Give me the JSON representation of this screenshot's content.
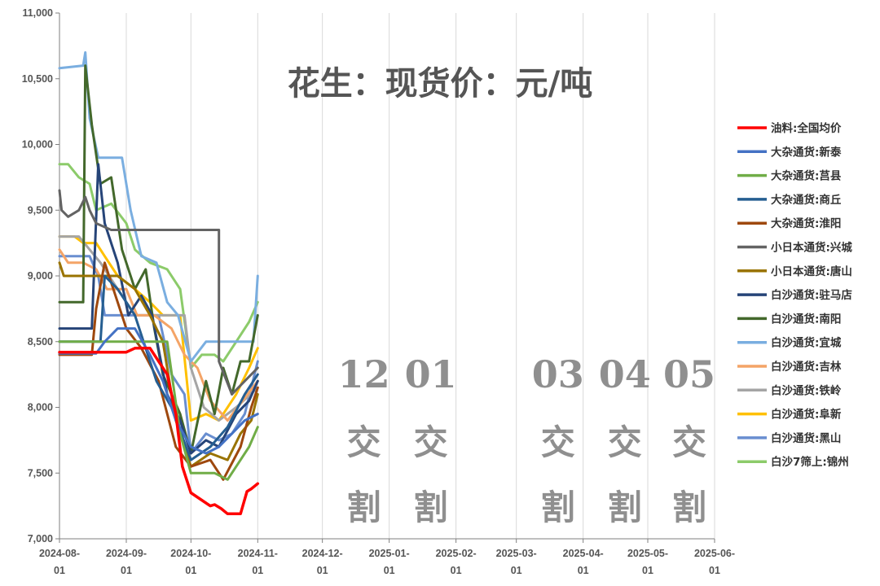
{
  "chart_data": {
    "type": "line",
    "title": "花生：现货价：元/吨",
    "xlabel": "",
    "ylabel": "",
    "x_range": [
      "2024-08-01",
      "2025-06-01"
    ],
    "ylim": [
      7000,
      11000
    ],
    "yticks": [
      "7,000",
      "7,500",
      "8,000",
      "8,500",
      "9,000",
      "9,500",
      "10,000",
      "10,500",
      "11,000"
    ],
    "xticks": [
      {
        "date": "2024-08-01",
        "line1": "2024-08-",
        "line2": "01"
      },
      {
        "date": "2024-09-01",
        "line1": "2024-09-",
        "line2": "01"
      },
      {
        "date": "2024-10-01",
        "line1": "2024-10-",
        "line2": "01"
      },
      {
        "date": "2024-11-01",
        "line1": "2024-11-",
        "line2": "01"
      },
      {
        "date": "2024-12-01",
        "line1": "2024-12-",
        "line2": "01"
      },
      {
        "date": "2025-01-01",
        "line1": "2025-01-",
        "line2": "01"
      },
      {
        "date": "2025-02-01",
        "line1": "2025-02-",
        "line2": "01"
      },
      {
        "date": "2025-03-01",
        "line1": "2025-03-",
        "line2": "01"
      },
      {
        "date": "2025-04-01",
        "line1": "2025-04-",
        "line2": "01"
      },
      {
        "date": "2025-05-01",
        "line1": "2025-05-",
        "line2": "01"
      },
      {
        "date": "2025-06-01",
        "line1": "2025-06-",
        "line2": "01"
      }
    ],
    "grid": "vertical",
    "legend_position": "right",
    "annotations": [
      {
        "date": "2024-12-15",
        "month": "12",
        "line2": "交",
        "line3": "割"
      },
      {
        "date": "2025-01-15",
        "month": "01",
        "line2": "交",
        "line3": "割"
      },
      {
        "date": "2025-03-15",
        "month": "03",
        "line2": "交",
        "line3": "割"
      },
      {
        "date": "2025-04-15",
        "month": "04",
        "line2": "交",
        "line3": "割"
      },
      {
        "date": "2025-05-15",
        "month": "05",
        "line2": "交",
        "line3": "割"
      }
    ],
    "series": [
      {
        "name": "油料:全国均价",
        "color": "#ff0000",
        "points": [
          [
            "2024-08-01",
            8420
          ],
          [
            "2024-08-15",
            8420
          ],
          [
            "2024-09-01",
            8420
          ],
          [
            "2024-09-05",
            8450
          ],
          [
            "2024-09-12",
            8450
          ],
          [
            "2024-09-20",
            8250
          ],
          [
            "2024-09-24",
            7950
          ],
          [
            "2024-09-27",
            7550
          ],
          [
            "2024-10-01",
            7350
          ],
          [
            "2024-10-10",
            7250
          ],
          [
            "2024-10-12",
            7260
          ],
          [
            "2024-10-15",
            7230
          ],
          [
            "2024-10-18",
            7190
          ],
          [
            "2024-10-24",
            7190
          ],
          [
            "2024-10-27",
            7360
          ],
          [
            "2024-10-29",
            7380
          ],
          [
            "2024-11-01",
            7420
          ]
        ]
      },
      {
        "name": "大杂通货:新泰",
        "color": "#4472c4",
        "points": [
          [
            "2024-08-01",
            8410
          ],
          [
            "2024-08-18",
            8410
          ],
          [
            "2024-08-22",
            8500
          ],
          [
            "2024-08-28",
            8600
          ],
          [
            "2024-09-05",
            8600
          ],
          [
            "2024-09-12",
            8400
          ],
          [
            "2024-09-18",
            8200
          ],
          [
            "2024-09-24",
            7900
          ],
          [
            "2024-10-01",
            7700
          ],
          [
            "2024-10-08",
            7650
          ],
          [
            "2024-10-14",
            7700
          ],
          [
            "2024-10-20",
            7800
          ],
          [
            "2024-10-26",
            7900
          ],
          [
            "2024-11-01",
            7950
          ]
        ]
      },
      {
        "name": "大杂通货:莒县",
        "color": "#70ad47",
        "points": [
          [
            "2024-08-01",
            8500
          ],
          [
            "2024-08-25",
            8500
          ],
          [
            "2024-09-05",
            8500
          ],
          [
            "2024-09-20",
            8500
          ],
          [
            "2024-09-26",
            7800
          ],
          [
            "2024-10-01",
            7500
          ],
          [
            "2024-10-12",
            7500
          ],
          [
            "2024-10-18",
            7450
          ],
          [
            "2024-10-24",
            7600
          ],
          [
            "2024-10-28",
            7700
          ],
          [
            "2024-11-01",
            7850
          ]
        ]
      },
      {
        "name": "大杂通货:商丘",
        "color": "#255e91",
        "points": [
          [
            "2024-08-01",
            8500
          ],
          [
            "2024-08-20",
            8500
          ],
          [
            "2024-08-22",
            9000
          ],
          [
            "2024-08-28",
            8900
          ],
          [
            "2024-09-05",
            8700
          ],
          [
            "2024-09-10",
            8450
          ],
          [
            "2024-09-15",
            8200
          ],
          [
            "2024-09-22",
            8000
          ],
          [
            "2024-10-01",
            7600
          ],
          [
            "2024-10-10",
            7700
          ],
          [
            "2024-10-18",
            7850
          ],
          [
            "2024-10-26",
            8100
          ],
          [
            "2024-11-01",
            8250
          ]
        ]
      },
      {
        "name": "大杂通货:淮阳",
        "color": "#9e480e",
        "points": [
          [
            "2024-08-01",
            8400
          ],
          [
            "2024-08-16",
            8400
          ],
          [
            "2024-08-18",
            8750
          ],
          [
            "2024-08-22",
            9100
          ],
          [
            "2024-08-26",
            8900
          ],
          [
            "2024-09-01",
            8600
          ],
          [
            "2024-09-08",
            8450
          ],
          [
            "2024-09-16",
            8200
          ],
          [
            "2024-09-24",
            7700
          ],
          [
            "2024-10-01",
            7550
          ],
          [
            "2024-10-10",
            7600
          ],
          [
            "2024-10-16",
            7450
          ],
          [
            "2024-10-24",
            7700
          ],
          [
            "2024-10-29",
            8000
          ],
          [
            "2024-11-01",
            8150
          ]
        ]
      },
      {
        "name": "小日本通货:兴城",
        "color": "#636363",
        "points": [
          [
            "2024-08-01",
            9650
          ],
          [
            "2024-08-02",
            9500
          ],
          [
            "2024-08-05",
            9450
          ],
          [
            "2024-08-10",
            9500
          ],
          [
            "2024-08-13",
            9600
          ],
          [
            "2024-08-15",
            9500
          ],
          [
            "2024-08-18",
            9400
          ],
          [
            "2024-08-25",
            9350
          ],
          [
            "2024-09-05",
            9350
          ],
          [
            "2024-10-01",
            9350
          ],
          [
            "2024-10-14",
            9350
          ],
          [
            "2024-10-14",
            8350
          ],
          [
            "2024-10-20",
            8100
          ],
          [
            "2024-10-26",
            8200
          ],
          [
            "2024-11-01",
            8300
          ]
        ]
      },
      {
        "name": "小日本通货:唐山",
        "color": "#997300",
        "points": [
          [
            "2024-08-01",
            9100
          ],
          [
            "2024-08-03",
            9000
          ],
          [
            "2024-08-10",
            9000
          ],
          [
            "2024-08-20",
            9000
          ],
          [
            "2024-08-28",
            9000
          ],
          [
            "2024-09-05",
            8900
          ],
          [
            "2024-09-12",
            8700
          ],
          [
            "2024-09-18",
            8500
          ],
          [
            "2024-09-24",
            7900
          ],
          [
            "2024-10-01",
            7550
          ],
          [
            "2024-10-10",
            7650
          ],
          [
            "2024-10-18",
            7600
          ],
          [
            "2024-10-24",
            7800
          ],
          [
            "2024-10-29",
            7900
          ],
          [
            "2024-11-01",
            8100
          ]
        ]
      },
      {
        "name": "白沙通货:驻马店",
        "color": "#264478",
        "points": [
          [
            "2024-08-01",
            8600
          ],
          [
            "2024-08-16",
            8600
          ],
          [
            "2024-08-19",
            9850
          ],
          [
            "2024-08-22",
            9400
          ],
          [
            "2024-08-28",
            9100
          ],
          [
            "2024-09-02",
            8700
          ],
          [
            "2024-09-08",
            8850
          ],
          [
            "2024-09-13",
            8700
          ],
          [
            "2024-09-20",
            8100
          ],
          [
            "2024-09-26",
            7900
          ],
          [
            "2024-10-01",
            7650
          ],
          [
            "2024-10-08",
            7750
          ],
          [
            "2024-10-14",
            7700
          ],
          [
            "2024-10-22",
            7950
          ],
          [
            "2024-10-28",
            8050
          ],
          [
            "2024-11-01",
            8200
          ]
        ]
      },
      {
        "name": "白沙通货:南阳",
        "color": "#43682b",
        "points": [
          [
            "2024-08-01",
            8800
          ],
          [
            "2024-08-12",
            8800
          ],
          [
            "2024-08-13",
            10600
          ],
          [
            "2024-08-16",
            10150
          ],
          [
            "2024-08-20",
            9700
          ],
          [
            "2024-08-25",
            9750
          ],
          [
            "2024-08-30",
            9200
          ],
          [
            "2024-09-05",
            8900
          ],
          [
            "2024-09-10",
            9050
          ],
          [
            "2024-09-14",
            8600
          ],
          [
            "2024-09-18",
            8250
          ],
          [
            "2024-09-26",
            7950
          ],
          [
            "2024-10-01",
            7650
          ],
          [
            "2024-10-08",
            8200
          ],
          [
            "2024-10-12",
            7950
          ],
          [
            "2024-10-16",
            8300
          ],
          [
            "2024-10-20",
            8100
          ],
          [
            "2024-10-24",
            8350
          ],
          [
            "2024-10-28",
            8350
          ],
          [
            "2024-11-01",
            8700
          ]
        ]
      },
      {
        "name": "白沙通货:宜城",
        "color": "#7aaee0",
        "points": [
          [
            "2024-08-01",
            10580
          ],
          [
            "2024-08-12",
            10600
          ],
          [
            "2024-08-13",
            10700
          ],
          [
            "2024-08-15",
            10200
          ],
          [
            "2024-08-19",
            9900
          ],
          [
            "2024-08-30",
            9900
          ],
          [
            "2024-09-03",
            9500
          ],
          [
            "2024-09-08",
            9150
          ],
          [
            "2024-09-15",
            9100
          ],
          [
            "2024-09-20",
            8800
          ],
          [
            "2024-09-25",
            8700
          ],
          [
            "2024-10-01",
            8350
          ],
          [
            "2024-10-08",
            8500
          ],
          [
            "2024-10-14",
            8500
          ],
          [
            "2024-10-22",
            8500
          ],
          [
            "2024-10-30",
            8500
          ],
          [
            "2024-11-01",
            9000
          ]
        ]
      },
      {
        "name": "白沙通货:吉林",
        "color": "#f4a467",
        "points": [
          [
            "2024-08-01",
            9200
          ],
          [
            "2024-08-05",
            9100
          ],
          [
            "2024-08-12",
            9100
          ],
          [
            "2024-08-18",
            9050
          ],
          [
            "2024-08-23",
            8900
          ],
          [
            "2024-09-01",
            8900
          ],
          [
            "2024-09-06",
            8700
          ],
          [
            "2024-09-14",
            8700
          ],
          [
            "2024-09-22",
            8600
          ],
          [
            "2024-09-28",
            8400
          ],
          [
            "2024-10-04",
            8300
          ],
          [
            "2024-10-10",
            8050
          ],
          [
            "2024-10-18",
            7900
          ],
          [
            "2024-10-25",
            8050
          ],
          [
            "2024-11-01",
            8200
          ]
        ]
      },
      {
        "name": "白沙通货:铁岭",
        "color": "#a5a5a5",
        "points": [
          [
            "2024-08-01",
            9300
          ],
          [
            "2024-08-10",
            9300
          ],
          [
            "2024-08-20",
            9100
          ],
          [
            "2024-08-28",
            8900
          ],
          [
            "2024-09-05",
            8700
          ],
          [
            "2024-09-20",
            8700
          ],
          [
            "2024-09-28",
            8700
          ],
          [
            "2024-10-01",
            8300
          ],
          [
            "2024-10-07",
            8000
          ],
          [
            "2024-10-14",
            7900
          ],
          [
            "2024-10-22",
            8000
          ],
          [
            "2024-11-01",
            8150
          ]
        ]
      },
      {
        "name": "白沙通货:阜新",
        "color": "#ffc000",
        "points": [
          [
            "2024-08-01",
            9300
          ],
          [
            "2024-08-08",
            9300
          ],
          [
            "2024-08-12",
            9250
          ],
          [
            "2024-08-18",
            9250
          ],
          [
            "2024-08-22",
            9150
          ],
          [
            "2024-08-28",
            9000
          ],
          [
            "2024-09-05",
            8900
          ],
          [
            "2024-09-12",
            8800
          ],
          [
            "2024-09-18",
            8700
          ],
          [
            "2024-09-26",
            8700
          ],
          [
            "2024-10-01",
            7900
          ],
          [
            "2024-10-08",
            7950
          ],
          [
            "2024-10-14",
            7900
          ],
          [
            "2024-10-22",
            8100
          ],
          [
            "2024-10-28",
            8300
          ],
          [
            "2024-11-01",
            8450
          ]
        ]
      },
      {
        "name": "白沙通货:黑山",
        "color": "#698ed0",
        "points": [
          [
            "2024-08-01",
            9150
          ],
          [
            "2024-08-15",
            9150
          ],
          [
            "2024-08-19",
            9000
          ],
          [
            "2024-08-22",
            8700
          ],
          [
            "2024-08-28",
            8700
          ],
          [
            "2024-09-08",
            8700
          ],
          [
            "2024-09-16",
            8700
          ],
          [
            "2024-09-22",
            8250
          ],
          [
            "2024-09-28",
            8100
          ],
          [
            "2024-10-01",
            7650
          ],
          [
            "2024-10-08",
            7800
          ],
          [
            "2024-10-14",
            7750
          ],
          [
            "2024-10-20",
            7800
          ],
          [
            "2024-10-26",
            7950
          ],
          [
            "2024-11-01",
            8350
          ]
        ]
      },
      {
        "name": "白沙7筛上:锦州",
        "color": "#8ccb6a",
        "points": [
          [
            "2024-08-01",
            9850
          ],
          [
            "2024-08-05",
            9850
          ],
          [
            "2024-08-10",
            9750
          ],
          [
            "2024-08-15",
            9700
          ],
          [
            "2024-08-18",
            9500
          ],
          [
            "2024-08-25",
            9550
          ],
          [
            "2024-09-01",
            9400
          ],
          [
            "2024-09-05",
            9200
          ],
          [
            "2024-09-12",
            9100
          ],
          [
            "2024-09-20",
            9050
          ],
          [
            "2024-09-26",
            8900
          ],
          [
            "2024-10-01",
            8300
          ],
          [
            "2024-10-06",
            8400
          ],
          [
            "2024-10-12",
            8400
          ],
          [
            "2024-10-16",
            8350
          ],
          [
            "2024-10-22",
            8500
          ],
          [
            "2024-10-28",
            8650
          ],
          [
            "2024-11-01",
            8800
          ]
        ]
      }
    ]
  }
}
